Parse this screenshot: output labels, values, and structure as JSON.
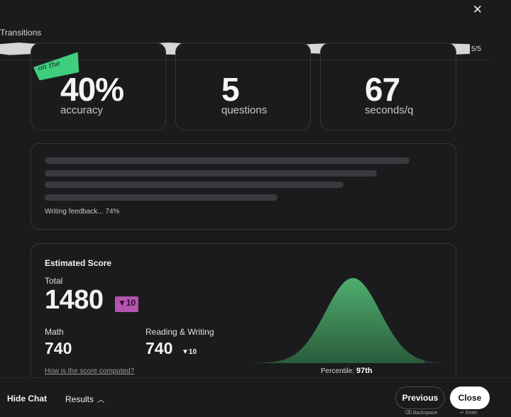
{
  "window": {
    "close_glyph": "✕"
  },
  "header": {
    "section_title": "Transitions",
    "progress_count": "5/5",
    "progress_fraction": 1.0
  },
  "sticker": {
    "text": "on the"
  },
  "stats": [
    {
      "value": "40%",
      "label": "accuracy"
    },
    {
      "value": "5",
      "label": "questions"
    },
    {
      "value": "67",
      "label": "seconds/q"
    }
  ],
  "feedback": {
    "status_text": "Writing feedback... 74%",
    "progress": 0.74
  },
  "score": {
    "title": "Estimated Score",
    "total_label": "Total",
    "total_value": "1480",
    "total_delta": "▼10",
    "math_label": "Math",
    "math_value": "740",
    "rw_label": "Reading & Writing",
    "rw_value": "740",
    "rw_delta": "▼10",
    "how_link": "How is the score computed?",
    "percentile_label": "Percentile:",
    "percentile_value": "97th",
    "percentile_number": 97,
    "curve_color": "#4a9d66"
  },
  "footer": {
    "hide_chat": "Hide Chat",
    "results_label": "Results",
    "results_icon": "chevron-up-icon",
    "previous_label": "Previous",
    "previous_hint": "Backspace",
    "close_label": "Close",
    "close_hint": "Enter"
  }
}
